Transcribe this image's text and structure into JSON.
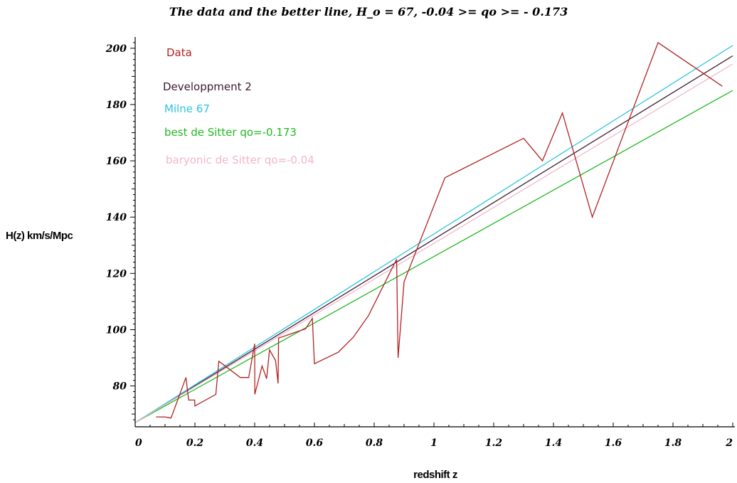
{
  "chart_data": {
    "type": "line",
    "title": "The data and the better line, H_o = 67, -0.04 >= qo >= - 0.173",
    "xlabel": "redshift z",
    "ylabel": "H(z) km/s/Mpc",
    "xlim": [
      0,
      2
    ],
    "ylim": [
      67,
      204
    ],
    "x_ticks": [
      0,
      0.2,
      0.4,
      0.6,
      0.8,
      1,
      1.2,
      1.4,
      1.6,
      1.8,
      2
    ],
    "x_tick_labels": [
      "0",
      "0.2",
      "0.4",
      "0.6",
      "0.8",
      "1",
      "1.2",
      "1.4",
      "1.6",
      "1.8",
      "2"
    ],
    "y_ticks": [
      80,
      100,
      120,
      140,
      160,
      180,
      200
    ],
    "y_tick_labels": [
      "80",
      "100",
      "120",
      "140",
      "160",
      "180",
      "200"
    ],
    "grid": false,
    "legend_position": "top-left",
    "series": [
      {
        "name": "Data",
        "color": "#b22222",
        "x": [
          0.07,
          0.1,
          0.12,
          0.17,
          0.179,
          0.199,
          0.2,
          0.27,
          0.28,
          0.352,
          0.38,
          0.4,
          0.4004,
          0.4247,
          0.44,
          0.4497,
          0.47,
          0.4783,
          0.48,
          0.57,
          0.593,
          0.6,
          0.68,
          0.73,
          0.781,
          0.875,
          0.88,
          0.9,
          1.037,
          1.3,
          1.363,
          1.43,
          1.53,
          1.75,
          1.965
        ],
        "y": [
          69,
          69,
          68.6,
          83,
          75,
          75,
          72.9,
          77,
          88.8,
          83,
          83,
          95,
          77,
          87.1,
          82.6,
          92.8,
          89,
          80.9,
          97,
          100.3,
          104,
          87.9,
          92,
          97.3,
          105,
          125,
          90,
          117,
          154,
          168,
          160,
          177,
          140,
          202,
          186.5
        ]
      },
      {
        "name": "Developpment 2",
        "color": "#3a1a30",
        "x": [
          0,
          2
        ],
        "y": [
          67,
          197.3
        ]
      },
      {
        "name": "Milne 67",
        "color": "#2ec4e0",
        "x": [
          0,
          2
        ],
        "y": [
          67,
          201
        ]
      },
      {
        "name": "best de Sitter qo=-0.173",
        "color": "#22b822",
        "x": [
          0,
          2
        ],
        "y": [
          67,
          185
        ]
      },
      {
        "name": "baryonic de Sitter qo=-0.04",
        "color": "#f2b6c8",
        "x": [
          0,
          2
        ],
        "y": [
          67,
          194.4
        ]
      }
    ]
  }
}
